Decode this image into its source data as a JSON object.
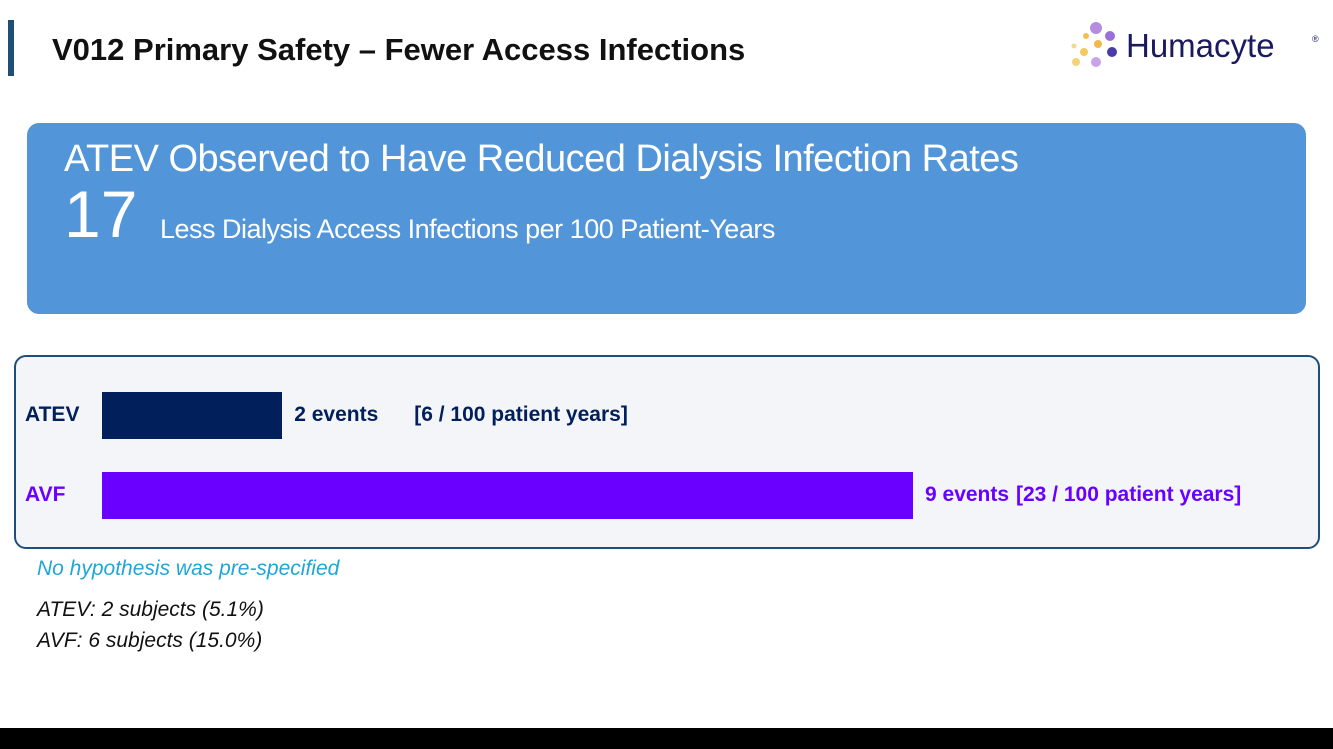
{
  "header": {
    "title": "V012 Primary Safety – Fewer Access Infections",
    "logo": "Humacyte"
  },
  "banner": {
    "headline": "ATEV Observed to Have Reduced Dialysis Infection Rates",
    "big_number": "17",
    "big_number_text": "Less Dialysis Access Infections per 100 Patient-Years"
  },
  "chart_data": {
    "type": "bar",
    "orientation": "horizontal",
    "categories": [
      "ATEV",
      "AVF"
    ],
    "values": [
      2,
      9
    ],
    "value_labels": [
      "2 events",
      "9 events"
    ],
    "rate_labels": [
      "[6 / 100 patient years]",
      "[23 / 100 patient years]"
    ],
    "colors": [
      "#001f5b",
      "#6a00ff"
    ]
  },
  "notes": {
    "hypothesis": "No hypothesis was pre-specified",
    "subjects": [
      "ATEV: 2 subjects (5.1%)",
      "AVF: 6 subjects (15.0%)"
    ]
  }
}
